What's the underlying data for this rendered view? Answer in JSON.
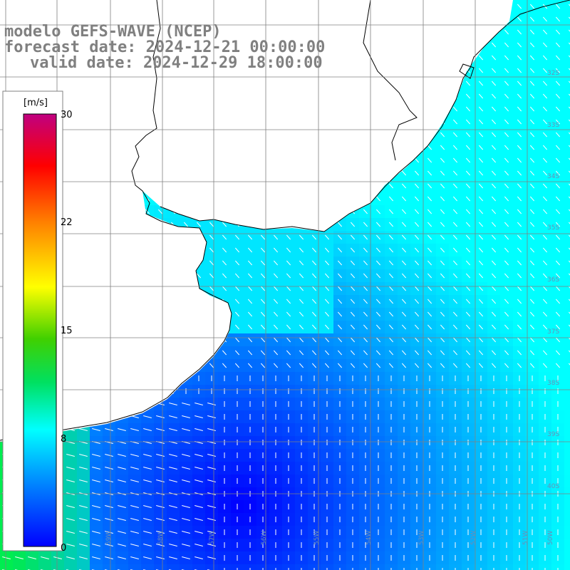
{
  "title": {
    "line1": "modelo GEFS-WAVE (NCEP)",
    "line2": "forecast date: 2024-12-21 00:00:00",
    "line3": "valid date: 2024-12-29 18:00:00"
  },
  "colorbar": {
    "unit": "[m/s]",
    "ticks": [
      "30",
      "22",
      "15",
      "8",
      "0"
    ],
    "colors": [
      "#0000ff",
      "#00a0ff",
      "#00ffff",
      "#00e060",
      "#00d000",
      "#ffff00",
      "#ff8000",
      "#ff0000",
      "#c00080"
    ]
  },
  "map": {
    "lat_labels": [
      "32S",
      "33S",
      "34S",
      "35S",
      "36S",
      "37S",
      "38S",
      "39S",
      "40S"
    ],
    "lon_labels": [
      "61W",
      "59W",
      "58W",
      "57W",
      "56W",
      "55W",
      "54W",
      "53W",
      "52W",
      "51W",
      "50W"
    ],
    "land_color": "#ffffff",
    "coast_color": "#000000",
    "grid_color": "#808080",
    "arrow_color": "#ffffff"
  }
}
